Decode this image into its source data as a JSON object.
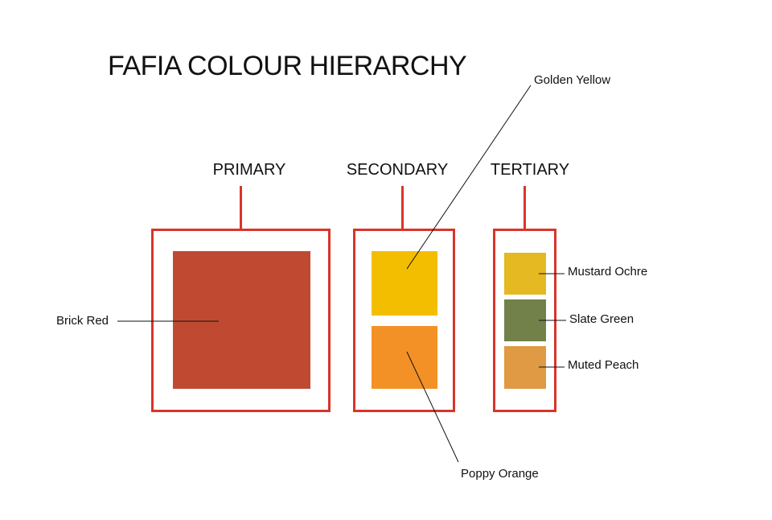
{
  "title": "FAFIA COLOUR HIERARCHY",
  "groups": {
    "primary": {
      "heading": "PRIMARY",
      "colours": [
        {
          "name": "Brick Red",
          "hex": "#bf4a31"
        }
      ]
    },
    "secondary": {
      "heading": "SECONDARY",
      "colours": [
        {
          "name": "Golden Yellow",
          "hex": "#f4be00"
        },
        {
          "name": "Poppy Orange",
          "hex": "#f39127"
        }
      ]
    },
    "tertiary": {
      "heading": "TERTIARY",
      "colours": [
        {
          "name": "Mustard Ochre",
          "hex": "#e4b922"
        },
        {
          "name": "Slate Green",
          "hex": "#728149"
        },
        {
          "name": "Muted Peach",
          "hex": "#e09a43"
        }
      ]
    }
  },
  "colors": {
    "frame": "#d8352a",
    "leader_line": "#111111",
    "text": "#111111",
    "background": "#ffffff"
  }
}
